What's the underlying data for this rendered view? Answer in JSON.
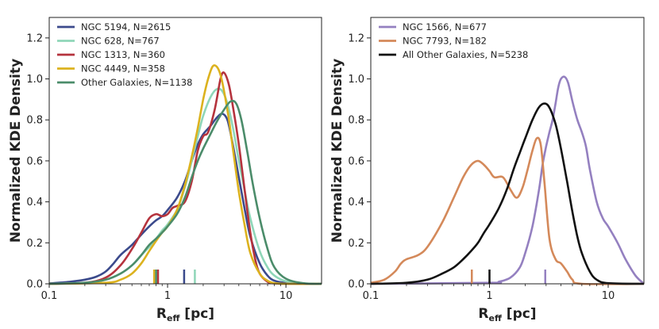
{
  "chart_data": [
    {
      "type": "line",
      "panel": "left",
      "xscale": "log",
      "xlim": [
        0.1,
        20
      ],
      "ylim": [
        0,
        1.3
      ],
      "xticks": [
        0.1,
        1,
        10
      ],
      "xtick_labels": [
        "0.1",
        "1",
        "10"
      ],
      "yticks": [
        0.0,
        0.2,
        0.4,
        0.6,
        0.8,
        1.0,
        1.2
      ],
      "ytick_labels": [
        "0.0",
        "0.2",
        "0.4",
        "0.6",
        "0.8",
        "1.0",
        "1.2"
      ],
      "xlabel_main": "R",
      "xlabel_sub": "eff",
      "xlabel_unit": " [pc]",
      "ylabel": "Normalized KDE Density",
      "legend_position": "top-left",
      "series": [
        {
          "name": "NGC 5194, N=2615",
          "color": "#3b4a8c",
          "median": 1.38,
          "points": [
            [
              0.1,
              0.002
            ],
            [
              0.15,
              0.01
            ],
            [
              0.2,
              0.02
            ],
            [
              0.25,
              0.035
            ],
            [
              0.3,
              0.06
            ],
            [
              0.35,
              0.1
            ],
            [
              0.4,
              0.14
            ],
            [
              0.5,
              0.19
            ],
            [
              0.6,
              0.24
            ],
            [
              0.7,
              0.28
            ],
            [
              0.8,
              0.31
            ],
            [
              0.9,
              0.33
            ],
            [
              1.0,
              0.36
            ],
            [
              1.2,
              0.42
            ],
            [
              1.4,
              0.5
            ],
            [
              1.6,
              0.6
            ],
            [
              1.8,
              0.68
            ],
            [
              2.0,
              0.73
            ],
            [
              2.3,
              0.77
            ],
            [
              2.6,
              0.81
            ],
            [
              2.9,
              0.83
            ],
            [
              3.2,
              0.8
            ],
            [
              3.5,
              0.7
            ],
            [
              4.0,
              0.52
            ],
            [
              4.5,
              0.36
            ],
            [
              5.0,
              0.23
            ],
            [
              6.0,
              0.1
            ],
            [
              7.0,
              0.04
            ],
            [
              8.0,
              0.015
            ],
            [
              10.0,
              0.004
            ],
            [
              14.0,
              0.0
            ],
            [
              20.0,
              0.0
            ]
          ]
        },
        {
          "name": "NGC 628,   N=767",
          "color": "#8fd6b8",
          "median": 1.7,
          "points": [
            [
              0.1,
              0.0
            ],
            [
              0.2,
              0.005
            ],
            [
              0.3,
              0.02
            ],
            [
              0.4,
              0.05
            ],
            [
              0.5,
              0.09
            ],
            [
              0.6,
              0.14
            ],
            [
              0.7,
              0.18
            ],
            [
              0.8,
              0.22
            ],
            [
              0.9,
              0.26
            ],
            [
              1.0,
              0.29
            ],
            [
              1.2,
              0.36
            ],
            [
              1.4,
              0.47
            ],
            [
              1.6,
              0.6
            ],
            [
              1.8,
              0.72
            ],
            [
              2.0,
              0.82
            ],
            [
              2.3,
              0.91
            ],
            [
              2.6,
              0.95
            ],
            [
              2.9,
              0.94
            ],
            [
              3.2,
              0.88
            ],
            [
              3.6,
              0.75
            ],
            [
              4.0,
              0.6
            ],
            [
              4.5,
              0.45
            ],
            [
              5.0,
              0.32
            ],
            [
              6.0,
              0.16
            ],
            [
              7.0,
              0.08
            ],
            [
              8.0,
              0.04
            ],
            [
              10.0,
              0.012
            ],
            [
              14.0,
              0.002
            ],
            [
              20.0,
              0.0
            ]
          ]
        },
        {
          "name": "NGC 1313, N=360",
          "color": "#b5333d",
          "median": 0.83,
          "points": [
            [
              0.1,
              0.0
            ],
            [
              0.2,
              0.005
            ],
            [
              0.3,
              0.03
            ],
            [
              0.4,
              0.09
            ],
            [
              0.5,
              0.17
            ],
            [
              0.6,
              0.25
            ],
            [
              0.7,
              0.32
            ],
            [
              0.8,
              0.34
            ],
            [
              0.9,
              0.33
            ],
            [
              1.0,
              0.34
            ],
            [
              1.1,
              0.37
            ],
            [
              1.2,
              0.38
            ],
            [
              1.4,
              0.4
            ],
            [
              1.6,
              0.5
            ],
            [
              1.8,
              0.65
            ],
            [
              2.0,
              0.72
            ],
            [
              2.2,
              0.74
            ],
            [
              2.5,
              0.85
            ],
            [
              2.8,
              1.0
            ],
            [
              3.0,
              1.03
            ],
            [
              3.3,
              0.97
            ],
            [
              3.6,
              0.85
            ],
            [
              4.0,
              0.68
            ],
            [
              4.5,
              0.45
            ],
            [
              5.0,
              0.25
            ],
            [
              5.5,
              0.12
            ],
            [
              6.0,
              0.05
            ],
            [
              7.0,
              0.01
            ],
            [
              8.0,
              0.002
            ],
            [
              10.0,
              0.0
            ],
            [
              20.0,
              0.0
            ]
          ]
        },
        {
          "name": "NGC 4449, N=358",
          "color": "#dcb21e",
          "median": 0.77,
          "points": [
            [
              0.1,
              0.0
            ],
            [
              0.3,
              0.005
            ],
            [
              0.4,
              0.02
            ],
            [
              0.5,
              0.05
            ],
            [
              0.6,
              0.1
            ],
            [
              0.7,
              0.16
            ],
            [
              0.8,
              0.21
            ],
            [
              0.9,
              0.25
            ],
            [
              1.0,
              0.28
            ],
            [
              1.2,
              0.36
            ],
            [
              1.4,
              0.48
            ],
            [
              1.6,
              0.62
            ],
            [
              1.8,
              0.76
            ],
            [
              2.0,
              0.9
            ],
            [
              2.2,
              1.0
            ],
            [
              2.4,
              1.06
            ],
            [
              2.6,
              1.06
            ],
            [
              2.8,
              1.02
            ],
            [
              3.0,
              0.94
            ],
            [
              3.3,
              0.8
            ],
            [
              3.6,
              0.64
            ],
            [
              4.0,
              0.45
            ],
            [
              4.5,
              0.28
            ],
            [
              5.0,
              0.15
            ],
            [
              6.0,
              0.05
            ],
            [
              7.0,
              0.015
            ],
            [
              8.0,
              0.003
            ],
            [
              10.0,
              0.0
            ],
            [
              20.0,
              0.0
            ]
          ]
        },
        {
          "name": "Other Galaxies, N=1138",
          "color": "#4b8c6a",
          "median": 0.8,
          "points": [
            [
              0.1,
              0.0
            ],
            [
              0.2,
              0.005
            ],
            [
              0.3,
              0.02
            ],
            [
              0.4,
              0.05
            ],
            [
              0.5,
              0.09
            ],
            [
              0.6,
              0.14
            ],
            [
              0.7,
              0.19
            ],
            [
              0.8,
              0.22
            ],
            [
              0.9,
              0.25
            ],
            [
              1.0,
              0.28
            ],
            [
              1.2,
              0.34
            ],
            [
              1.4,
              0.42
            ],
            [
              1.6,
              0.52
            ],
            [
              1.8,
              0.6
            ],
            [
              2.0,
              0.66
            ],
            [
              2.3,
              0.73
            ],
            [
              2.6,
              0.79
            ],
            [
              3.0,
              0.85
            ],
            [
              3.4,
              0.89
            ],
            [
              3.8,
              0.88
            ],
            [
              4.2,
              0.8
            ],
            [
              4.7,
              0.65
            ],
            [
              5.2,
              0.5
            ],
            [
              6.0,
              0.32
            ],
            [
              7.0,
              0.17
            ],
            [
              8.0,
              0.08
            ],
            [
              10.0,
              0.025
            ],
            [
              14.0,
              0.003
            ],
            [
              20.0,
              0.0
            ]
          ]
        }
      ]
    },
    {
      "type": "line",
      "panel": "right",
      "xscale": "log",
      "xlim": [
        0.1,
        20
      ],
      "ylim": [
        0,
        1.3
      ],
      "xticks": [
        0.1,
        1,
        10
      ],
      "xtick_labels": [
        "0.1",
        "1",
        "10"
      ],
      "yticks": [
        0.0,
        0.2,
        0.4,
        0.6,
        0.8,
        1.0,
        1.2
      ],
      "ytick_labels": [
        "0.0",
        "0.2",
        "0.4",
        "0.6",
        "0.8",
        "1.0",
        "1.2"
      ],
      "xlabel_main": "R",
      "xlabel_sub": "eff",
      "xlabel_unit": " [pc]",
      "ylabel": "Normalized KDE Density",
      "legend_position": "top-left",
      "series": [
        {
          "name": "NGC 1566, N=677",
          "color": "#9480c0",
          "median": 2.95,
          "points": [
            [
              0.1,
              0.0
            ],
            [
              1.0,
              0.005
            ],
            [
              1.2,
              0.01
            ],
            [
              1.5,
              0.03
            ],
            [
              1.8,
              0.08
            ],
            [
              2.0,
              0.15
            ],
            [
              2.3,
              0.28
            ],
            [
              2.6,
              0.45
            ],
            [
              2.8,
              0.58
            ],
            [
              3.0,
              0.67
            ],
            [
              3.2,
              0.74
            ],
            [
              3.4,
              0.8
            ],
            [
              3.6,
              0.88
            ],
            [
              3.8,
              0.96
            ],
            [
              4.0,
              1.0
            ],
            [
              4.3,
              1.01
            ],
            [
              4.6,
              0.98
            ],
            [
              5.0,
              0.89
            ],
            [
              5.5,
              0.8
            ],
            [
              6.0,
              0.74
            ],
            [
              6.5,
              0.67
            ],
            [
              7.0,
              0.56
            ],
            [
              8.0,
              0.4
            ],
            [
              9.0,
              0.32
            ],
            [
              10.0,
              0.28
            ],
            [
              12.0,
              0.2
            ],
            [
              14.0,
              0.12
            ],
            [
              17.0,
              0.04
            ],
            [
              20.0,
              0.0
            ]
          ]
        },
        {
          "name": "NGC 7793, N=182",
          "color": "#d4895a",
          "median": 0.71,
          "points": [
            [
              0.1,
              0.005
            ],
            [
              0.13,
              0.02
            ],
            [
              0.16,
              0.06
            ],
            [
              0.18,
              0.1
            ],
            [
              0.2,
              0.12
            ],
            [
              0.25,
              0.14
            ],
            [
              0.3,
              0.18
            ],
            [
              0.4,
              0.3
            ],
            [
              0.5,
              0.42
            ],
            [
              0.6,
              0.52
            ],
            [
              0.7,
              0.58
            ],
            [
              0.8,
              0.6
            ],
            [
              0.9,
              0.58
            ],
            [
              1.0,
              0.55
            ],
            [
              1.1,
              0.52
            ],
            [
              1.3,
              0.52
            ],
            [
              1.5,
              0.46
            ],
            [
              1.7,
              0.42
            ],
            [
              1.9,
              0.47
            ],
            [
              2.1,
              0.56
            ],
            [
              2.3,
              0.65
            ],
            [
              2.5,
              0.71
            ],
            [
              2.7,
              0.68
            ],
            [
              2.9,
              0.5
            ],
            [
              3.2,
              0.22
            ],
            [
              3.6,
              0.12
            ],
            [
              4.0,
              0.1
            ],
            [
              4.5,
              0.06
            ],
            [
              5.0,
              0.02
            ],
            [
              6.0,
              0.0
            ],
            [
              20.0,
              0.0
            ]
          ]
        },
        {
          "name": "All Other Galaxies, N=5238",
          "color": "#111111",
          "median": 1.0,
          "points": [
            [
              0.1,
              0.0
            ],
            [
              0.2,
              0.005
            ],
            [
              0.3,
              0.02
            ],
            [
              0.4,
              0.05
            ],
            [
              0.5,
              0.08
            ],
            [
              0.6,
              0.12
            ],
            [
              0.7,
              0.16
            ],
            [
              0.8,
              0.2
            ],
            [
              0.9,
              0.25
            ],
            [
              1.0,
              0.29
            ],
            [
              1.2,
              0.37
            ],
            [
              1.4,
              0.46
            ],
            [
              1.6,
              0.56
            ],
            [
              1.8,
              0.64
            ],
            [
              2.0,
              0.71
            ],
            [
              2.3,
              0.8
            ],
            [
              2.6,
              0.86
            ],
            [
              2.9,
              0.88
            ],
            [
              3.2,
              0.86
            ],
            [
              3.6,
              0.78
            ],
            [
              4.0,
              0.66
            ],
            [
              4.5,
              0.5
            ],
            [
              5.0,
              0.35
            ],
            [
              5.5,
              0.23
            ],
            [
              6.0,
              0.15
            ],
            [
              7.0,
              0.06
            ],
            [
              8.0,
              0.02
            ],
            [
              10.0,
              0.003
            ],
            [
              20.0,
              0.0
            ]
          ]
        }
      ]
    }
  ]
}
